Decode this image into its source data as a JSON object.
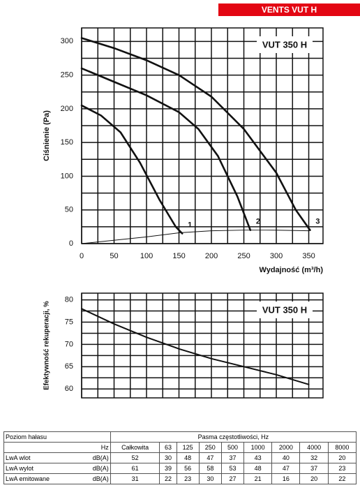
{
  "header": "VENTS VUT H",
  "chart_data": [
    {
      "type": "line",
      "label": "VUT 350 H",
      "ylabel": "Ciśnienie (Pa)",
      "xlabel": "Wydajność (m³/h)",
      "xlim": [
        0,
        372
      ],
      "xticks": [
        0,
        50,
        100,
        150,
        200,
        250,
        300,
        350
      ],
      "xticks_minor": [
        25,
        75,
        125,
        175,
        225,
        275,
        325
      ],
      "ylim": [
        0,
        320
      ],
      "yticks": [
        0,
        50,
        100,
        150,
        200,
        250,
        300
      ],
      "yticks_minor": [
        25,
        75,
        125,
        175,
        225,
        275
      ],
      "grid": true,
      "series": [
        {
          "name": "1",
          "color": "#111111",
          "line_width": 2.6,
          "x": [
            0,
            30,
            60,
            90,
            120,
            145,
            155
          ],
          "values": [
            205,
            190,
            165,
            120,
            65,
            25,
            15
          ]
        },
        {
          "name": "2",
          "color": "#111111",
          "line_width": 2.6,
          "x": [
            0,
            50,
            100,
            150,
            180,
            210,
            240,
            260
          ],
          "values": [
            260,
            240,
            220,
            195,
            170,
            130,
            70,
            20
          ]
        },
        {
          "name": "3",
          "color": "#111111",
          "line_width": 2.6,
          "x": [
            0,
            50,
            100,
            150,
            200,
            250,
            300,
            330,
            352
          ],
          "values": [
            305,
            290,
            272,
            250,
            218,
            170,
            105,
            50,
            20
          ]
        },
        {
          "color": "#111111",
          "line_width": 1,
          "x": [
            0,
            100,
            150,
            200,
            250,
            300,
            350
          ],
          "values": [
            0,
            10,
            16,
            19,
            20,
            20,
            19
          ]
        }
      ]
    },
    {
      "type": "line",
      "label": "VUT 350 H",
      "ylabel": "Efektywność rekuperacji, %",
      "xlim": [
        0,
        372
      ],
      "xticks": [
        0,
        50,
        100,
        150,
        200,
        250,
        300,
        350
      ],
      "xticks_minor": [
        25,
        75,
        125,
        175,
        225,
        275,
        325
      ],
      "ylim": [
        58,
        81.5
      ],
      "yticks": [
        60,
        65,
        70,
        75,
        80
      ],
      "yticks_minor": [
        62.5,
        67.5,
        72.5,
        77.5
      ],
      "grid": true,
      "show_xtick_labels": false,
      "series": [
        {
          "color": "#111111",
          "line_width": 2,
          "x": [
            0,
            50,
            100,
            150,
            200,
            250,
            300,
            350
          ],
          "values": [
            78,
            74.6,
            71.6,
            69,
            66.8,
            65,
            63.2,
            61
          ]
        }
      ]
    }
  ],
  "table": {
    "title": "Poziom hałasu",
    "band_title": "Pasma częstotliwości, Hz",
    "unit_header": "Hz",
    "columns": [
      "Całkowita",
      "63",
      "125",
      "250",
      "500",
      "1000",
      "2000",
      "4000",
      "8000"
    ],
    "rows": [
      {
        "label": "LwA wlot",
        "unit": "dB(A)",
        "values": [
          52,
          30,
          48,
          47,
          37,
          43,
          40,
          32,
          20
        ]
      },
      {
        "label": "LwA wylot",
        "unit": "dB(A)",
        "values": [
          61,
          39,
          56,
          58,
          53,
          48,
          47,
          37,
          23
        ]
      },
      {
        "label": "LwA emitowane",
        "unit": "dB(A)",
        "values": [
          31,
          22,
          23,
          30,
          27,
          21,
          16,
          20,
          22
        ]
      }
    ]
  }
}
